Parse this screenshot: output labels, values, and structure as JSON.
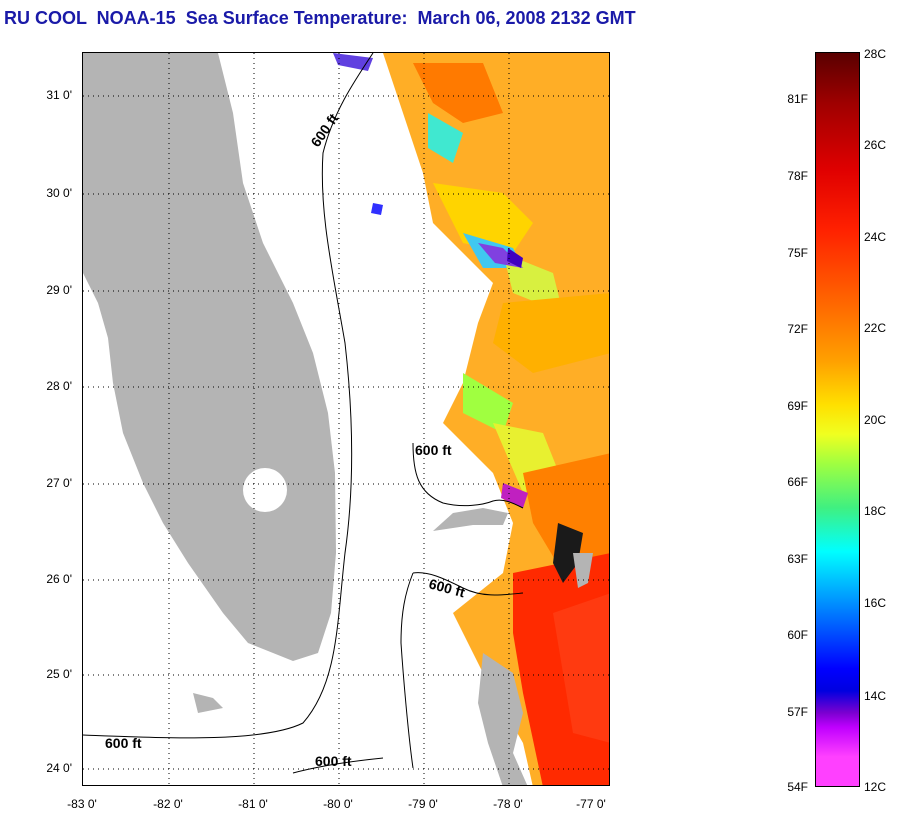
{
  "title": "RU COOL  NOAA-15  Sea Surface Temperature:  March 06, 2008 2132 GMT",
  "map": {
    "lat_labels": [
      "31 0'",
      "30 0'",
      "29 0'",
      "28 0'",
      "27 0'",
      "26 0'",
      "25 0'",
      "24 0'"
    ],
    "lon_labels": [
      "-83 0'",
      "-82 0'",
      "-81 0'",
      "-80 0'",
      "-79 0'",
      "-78 0'",
      "-77 0'"
    ],
    "contour_labels": [
      "600 ft",
      "600 ft",
      "600 ft",
      "600 ft",
      "600 ft"
    ],
    "land_color": "#b4b4b4"
  },
  "colorbar": {
    "fahrenheit": [
      "81F",
      "78F",
      "75F",
      "72F",
      "69F",
      "66F",
      "63F",
      "60F",
      "57F",
      "54F"
    ],
    "celsius": [
      "28C",
      "26C",
      "24C",
      "22C",
      "20C",
      "18C",
      "16C",
      "14C",
      "12C"
    ]
  }
}
